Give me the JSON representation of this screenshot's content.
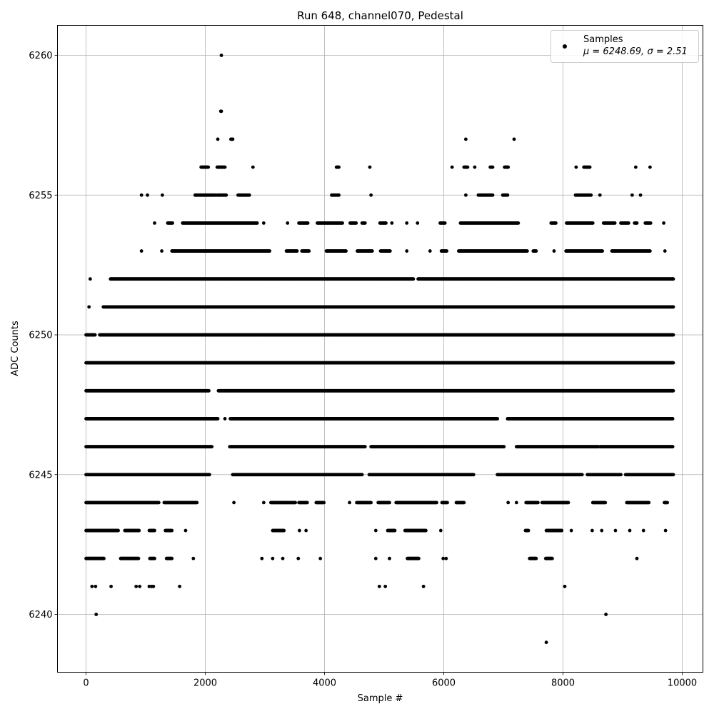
{
  "chart_data": {
    "type": "scatter",
    "title": "Run 648, channel070, Pedestal",
    "xlabel": "Sample #",
    "ylabel": "ADC Counts",
    "xlim": [
      -480,
      10350
    ],
    "ylim": [
      6238,
      6261
    ],
    "x_ticks": [
      0,
      2000,
      4000,
      6000,
      8000,
      10000
    ],
    "y_ticks": [
      6240,
      6245,
      6250,
      6255,
      6260
    ],
    "grid": true,
    "marker_color": "#000000",
    "legend": {
      "placement": "top-right",
      "entries": [
        {
          "label": "Samples",
          "stats": "μ = 6248.69, σ = 2.51"
        }
      ]
    },
    "series": [
      {
        "name": "Samples",
        "mean": 6248.69,
        "std": 2.51,
        "sample_range": [
          0,
          9850
        ],
        "band_extents": [
          {
            "y": 6239,
            "x": [
              7720
            ]
          },
          {
            "y": 6240,
            "x": [
              170,
              8720
            ]
          },
          {
            "y": 6241,
            "x": [
              100,
              160,
              420,
              840,
              900,
              1060,
              1100,
              1130,
              1570,
              4920,
              5020,
              5660,
              8030
            ]
          },
          {
            "y": 6242,
            "x": [
              [
                0,
                300
              ],
              [
                580,
                880
              ],
              [
                1070,
                1150
              ],
              [
                1350,
                1440
              ],
              1800,
              2950,
              3130,
              3300,
              3560,
              3930,
              4860,
              5090,
              [
                5390,
                5580
              ],
              5990,
              6040,
              [
                7440,
                7550
              ],
              [
                7710,
                7820
              ],
              9240
            ]
          },
          {
            "y": 6243,
            "x": [
              [
                0,
                540
              ],
              [
                650,
                890
              ],
              [
                1060,
                1150
              ],
              [
                1330,
                1440
              ],
              1670,
              [
                3130,
                3320
              ],
              3580,
              3690,
              4860,
              [
                5060,
                5180
              ],
              [
                5350,
                5700
              ],
              5950,
              [
                7370,
                7420
              ],
              [
                7720,
                7980
              ],
              8140,
              8490,
              8650,
              8880,
              9120,
              9350,
              9720
            ]
          },
          {
            "y": 6244,
            "x": [
              [
                0,
                1220
              ],
              [
                1310,
                1860
              ],
              2480,
              2980,
              [
                3100,
                3510
              ],
              [
                3570,
                3710
              ],
              [
                3860,
                3990
              ],
              4420,
              [
                4540,
                4780
              ],
              [
                4900,
                5090
              ],
              [
                5200,
                5880
              ],
              [
                5970,
                6060
              ],
              [
                6210,
                6340
              ],
              7080,
              7220,
              [
                7380,
                7580
              ],
              [
                7650,
                8090
              ],
              [
                8500,
                8710
              ],
              [
                9070,
                9440
              ],
              [
                9700,
                9750
              ]
            ]
          },
          {
            "y": 6245,
            "x": [
              [
                0,
                2070
              ],
              [
                2460,
                4630
              ],
              [
                4750,
                6500
              ],
              [
                6900,
                8320
              ],
              [
                8410,
                8970
              ],
              [
                9050,
                9850
              ]
            ]
          },
          {
            "y": 6246,
            "x": [
              [
                0,
                2110
              ],
              [
                2410,
                4680
              ],
              [
                4780,
                7010
              ],
              [
                7220,
                8590
              ],
              [
                8620,
                9840
              ]
            ]
          },
          {
            "y": 6247,
            "x": [
              [
                0,
                2210
              ],
              2330,
              [
                2420,
                6900
              ],
              [
                7070,
                9840
              ]
            ]
          },
          {
            "y": 6248,
            "x": [
              [
                0,
                2060
              ],
              [
                2220,
                9850
              ]
            ]
          },
          {
            "y": 6249,
            "x": [
              [
                0,
                9850
              ]
            ]
          },
          {
            "y": 6250,
            "x": [
              [
                0,
                150
              ],
              [
                230,
                9850
              ]
            ]
          },
          {
            "y": 6251,
            "x": [
              50,
              [
                290,
                9850
              ]
            ]
          },
          {
            "y": 6252,
            "x": [
              70,
              [
                410,
                5490
              ],
              [
                5570,
                9850
              ]
            ]
          },
          {
            "y": 6253,
            "x": [
              930,
              1270,
              [
                1440,
                3080
              ],
              [
                3360,
                3540
              ],
              [
                3620,
                3740
              ],
              [
                4030,
                4360
              ],
              [
                4550,
                4800
              ],
              [
                4940,
                5100
              ],
              5380,
              5770,
              [
                5960,
                6050
              ],
              [
                6250,
                7400
              ],
              [
                7500,
                7550
              ],
              7850,
              [
                8050,
                8660
              ],
              [
                8820,
                9460
              ],
              9710
            ]
          },
          {
            "y": 6254,
            "x": [
              1150,
              [
                1370,
                1450
              ],
              [
                1620,
                2870
              ],
              2980,
              3380,
              [
                3570,
                3720
              ],
              [
                3880,
                4300
              ],
              [
                4430,
                4530
              ],
              [
                4630,
                4680
              ],
              [
                4930,
                5030
              ],
              5130,
              5380,
              5560,
              [
                5940,
                6020
              ],
              [
                6280,
                7250
              ],
              [
                7800,
                7880
              ],
              [
                8060,
                8500
              ],
              [
                8680,
                8870
              ],
              [
                8970,
                9100
              ],
              [
                9200,
                9240
              ],
              [
                9380,
                9470
              ],
              9690
            ]
          },
          {
            "y": 6255,
            "x": [
              930,
              1030,
              1280,
              [
                1830,
                2170
              ],
              [
                2200,
                2350
              ],
              [
                2550,
                2740
              ],
              [
                4120,
                4240
              ],
              4780,
              6370,
              [
                6580,
                6820
              ],
              [
                6990,
                7070
              ],
              [
                8210,
                8470
              ],
              8620,
              9160,
              9300
            ]
          },
          {
            "y": 6256,
            "x": [
              [
                1930,
                2050
              ],
              [
                2200,
                2330
              ],
              2800,
              [
                4200,
                4240
              ],
              4760,
              6140,
              [
                6340,
                6400
              ],
              6520,
              [
                6780,
                6820
              ],
              [
                7020,
                7080
              ],
              8220,
              [
                8350,
                8450
              ],
              9220,
              9460
            ]
          },
          {
            "y": 6257,
            "x": [
              2210,
              [
                2430,
                2460
              ],
              6370,
              7180
            ]
          },
          {
            "y": 6258,
            "x": [
              2260,
              2270
            ]
          },
          {
            "y": 6260,
            "x": [
              2270
            ]
          }
        ]
      }
    ]
  }
}
